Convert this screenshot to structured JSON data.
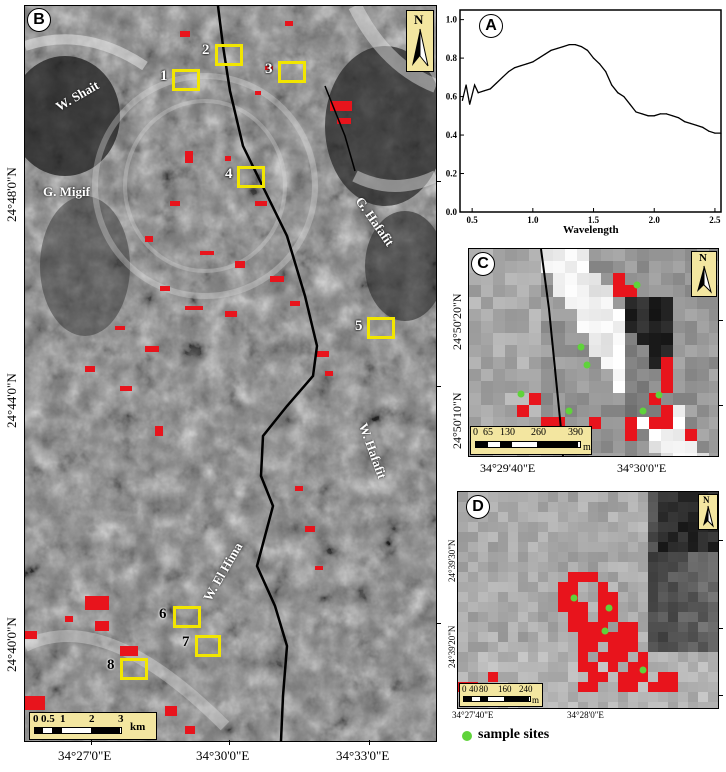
{
  "panel_b": {
    "badge": "B",
    "place_labels": {
      "w_shait": "W. Shait",
      "g_migif": "G. Migif",
      "g_hafafit": "G. Hafafit",
      "w_hafafit": "W. Hafafit",
      "w_el_hima": "W. El Hima"
    },
    "site_numbers": [
      "1",
      "2",
      "3",
      "4",
      "5",
      "6",
      "7",
      "8"
    ],
    "y_labels": [
      "24°48'0\"N",
      "24°44'0\"N",
      "24°40'0\"N"
    ],
    "x_labels": [
      "34°27'0\"E",
      "34°30'0\"E",
      "34°33'0\"E"
    ],
    "scale": {
      "ticks": [
        "0",
        "0.5",
        "1",
        "2",
        "3"
      ],
      "unit": "km"
    },
    "north": "N"
  },
  "panel_a": {
    "badge": "A",
    "xlabel": "Wavelength",
    "x_ticks": [
      "0.5",
      "1.0",
      "1.5",
      "2.0",
      "2.5"
    ],
    "y_ticks": [
      "0.0",
      "0.2",
      "0.4",
      "0.6",
      "0.8",
      "1.0"
    ]
  },
  "panel_c": {
    "badge": "C",
    "north": "N",
    "y_labels": [
      "24°50'20\"N",
      "24°50'10\"N"
    ],
    "x_labels": [
      "34°29'40\"E",
      "34°30'0\"E"
    ],
    "scale": {
      "ticks": [
        "0",
        "65",
        "130",
        "260",
        "390"
      ],
      "unit": "m"
    }
  },
  "panel_d": {
    "badge": "D",
    "north": "N",
    "y_labels": [
      "24°39'30\"N",
      "24°39'20\"N"
    ],
    "x_labels": [
      "34°27'40\"E",
      "34°28'0\"E"
    ],
    "scale": {
      "ticks": [
        "0",
        "40",
        "80",
        "160",
        "240"
      ],
      "unit": "m"
    }
  },
  "legend": {
    "label": "sample sites",
    "color": "#5fd33a"
  },
  "colors": {
    "alteration": "#e8141c",
    "site_box": "#f2e600",
    "sample": "#5fd33a"
  },
  "chart_data": {
    "type": "line",
    "title": "",
    "xlabel": "Wavelength",
    "ylabel": "",
    "xlim": [
      0.4,
      2.55
    ],
    "ylim": [
      0.0,
      1.05
    ],
    "series": [
      {
        "x": [
          0.42,
          0.45,
          0.48,
          0.52,
          0.55,
          0.6,
          0.65,
          0.7,
          0.75,
          0.8,
          0.85,
          0.9,
          0.95,
          1.0,
          1.05,
          1.1,
          1.15,
          1.2,
          1.25,
          1.3,
          1.35,
          1.4,
          1.45,
          1.5,
          1.55,
          1.6,
          1.65,
          1.7,
          1.75,
          1.8,
          1.85,
          1.9,
          1.95,
          2.0,
          2.05,
          2.1,
          2.15,
          2.2,
          2.25,
          2.3,
          2.35,
          2.4,
          2.45,
          2.5,
          2.55
        ],
        "y": [
          0.58,
          0.66,
          0.56,
          0.66,
          0.62,
          0.63,
          0.64,
          0.67,
          0.7,
          0.73,
          0.75,
          0.76,
          0.77,
          0.78,
          0.8,
          0.82,
          0.84,
          0.85,
          0.86,
          0.87,
          0.87,
          0.86,
          0.84,
          0.8,
          0.77,
          0.73,
          0.66,
          0.62,
          0.6,
          0.56,
          0.52,
          0.51,
          0.5,
          0.5,
          0.51,
          0.51,
          0.5,
          0.49,
          0.47,
          0.46,
          0.45,
          0.44,
          0.42,
          0.41,
          0.41
        ]
      }
    ]
  }
}
